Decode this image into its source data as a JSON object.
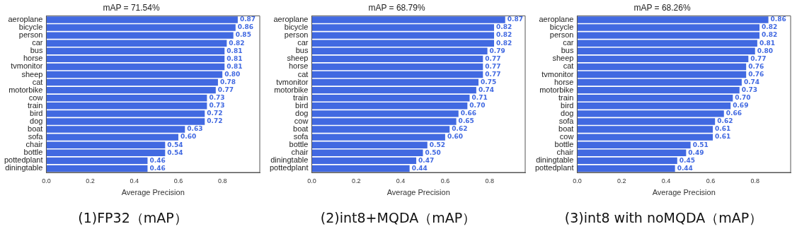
{
  "chart_data": [
    {
      "type": "bar",
      "orientation": "horizontal",
      "title": "mAP = 71.54%",
      "xlabel": "Average Precision",
      "annotations": [
        "(1)FP32（mAP）"
      ],
      "color": "#4169e1",
      "xlim": [
        0,
        0.97
      ],
      "xticks": [
        {
          "value": 0,
          "label": "0.0"
        },
        {
          "value": 0.2,
          "label": "0.2"
        },
        {
          "value": 0.4,
          "label": "0.4"
        },
        {
          "value": 0.6,
          "label": "0.6"
        },
        {
          "value": 0.8,
          "label": "0.8"
        }
      ],
      "grid": false,
      "categories": [
        "aeroplane",
        "bicycle",
        "person",
        "car",
        "bus",
        "horse",
        "tvmonitor",
        "sheep",
        "cat",
        "motorbike",
        "cow",
        "train",
        "bird",
        "dog",
        "boat",
        "sofa",
        "chair",
        "bottle",
        "pottedplant",
        "diningtable"
      ],
      "values": [
        0.87,
        0.86,
        0.85,
        0.82,
        0.81,
        0.81,
        0.81,
        0.8,
        0.78,
        0.77,
        0.73,
        0.73,
        0.72,
        0.72,
        0.63,
        0.6,
        0.54,
        0.54,
        0.46,
        0.46
      ],
      "value_labels": [
        "0.87",
        "0.86",
        "0.85",
        "0.82",
        "0.81",
        "0.81",
        "0.81",
        "0.80",
        "0.78",
        "0.77",
        "0.73",
        "0.73",
        "0.72",
        "0.72",
        "0.63",
        "0.60",
        "0.54",
        "0.54",
        "0.46",
        "0.46"
      ]
    },
    {
      "type": "bar",
      "orientation": "horizontal",
      "title": "mAP = 68.79%",
      "xlabel": "Average Precision",
      "annotations": [
        "(2)int8+MQDA（mAP）"
      ],
      "color": "#4169e1",
      "xlim": [
        0,
        0.96
      ],
      "xticks": [
        {
          "value": 0,
          "label": "0.0"
        },
        {
          "value": 0.2,
          "label": "0.2"
        },
        {
          "value": 0.4,
          "label": "0.4"
        },
        {
          "value": 0.6,
          "label": "0.6"
        },
        {
          "value": 0.8,
          "label": "0.8"
        }
      ],
      "grid": false,
      "categories": [
        "aeroplane",
        "bicycle",
        "person",
        "car",
        "bus",
        "sheep",
        "horse",
        "cat",
        "tvmonitor",
        "motorbike",
        "train",
        "bird",
        "dog",
        "cow",
        "boat",
        "sofa",
        "bottle",
        "chair",
        "diningtable",
        "pottedplant"
      ],
      "values": [
        0.87,
        0.82,
        0.82,
        0.82,
        0.79,
        0.77,
        0.77,
        0.77,
        0.75,
        0.74,
        0.71,
        0.7,
        0.66,
        0.65,
        0.62,
        0.6,
        0.52,
        0.5,
        0.47,
        0.44
      ],
      "value_labels": [
        "0.87",
        "0.82",
        "0.82",
        "0.82",
        "0.79",
        "0.77",
        "0.77",
        "0.77",
        "0.75",
        "0.74",
        "0.71",
        "0.70",
        "0.66",
        "0.65",
        "0.62",
        "0.60",
        "0.52",
        "0.50",
        "0.47",
        "0.44"
      ]
    },
    {
      "type": "bar",
      "orientation": "horizontal",
      "title": "mAP = 68.26%",
      "xlabel": "Average Precision",
      "annotations": [
        "(3)int8 with noMQDA（mAP）"
      ],
      "color": "#4169e1",
      "xlim": [
        0,
        0.96
      ],
      "xticks": [
        {
          "value": 0,
          "label": "0.0"
        },
        {
          "value": 0.2,
          "label": "0.2"
        },
        {
          "value": 0.4,
          "label": "0.4"
        },
        {
          "value": 0.6,
          "label": "0.6"
        },
        {
          "value": 0.8,
          "label": "0.8"
        }
      ],
      "grid": false,
      "categories": [
        "aeroplane",
        "bicycle",
        "person",
        "car",
        "bus",
        "sheep",
        "cat",
        "tvmonitor",
        "horse",
        "motorbike",
        "train",
        "bird",
        "dog",
        "sofa",
        "boat",
        "cow",
        "bottle",
        "chair",
        "diningtable",
        "pottedplant"
      ],
      "values": [
        0.86,
        0.82,
        0.82,
        0.81,
        0.8,
        0.77,
        0.76,
        0.76,
        0.74,
        0.73,
        0.7,
        0.69,
        0.66,
        0.62,
        0.61,
        0.61,
        0.51,
        0.49,
        0.45,
        0.44
      ],
      "value_labels": [
        "0.86",
        "0.82",
        "0.82",
        "0.81",
        "0.80",
        "0.77",
        "0.76",
        "0.76",
        "0.74",
        "0.73",
        "0.70",
        "0.69",
        "0.66",
        "0.62",
        "0.61",
        "0.61",
        "0.51",
        "0.49",
        "0.45",
        "0.44"
      ]
    }
  ]
}
